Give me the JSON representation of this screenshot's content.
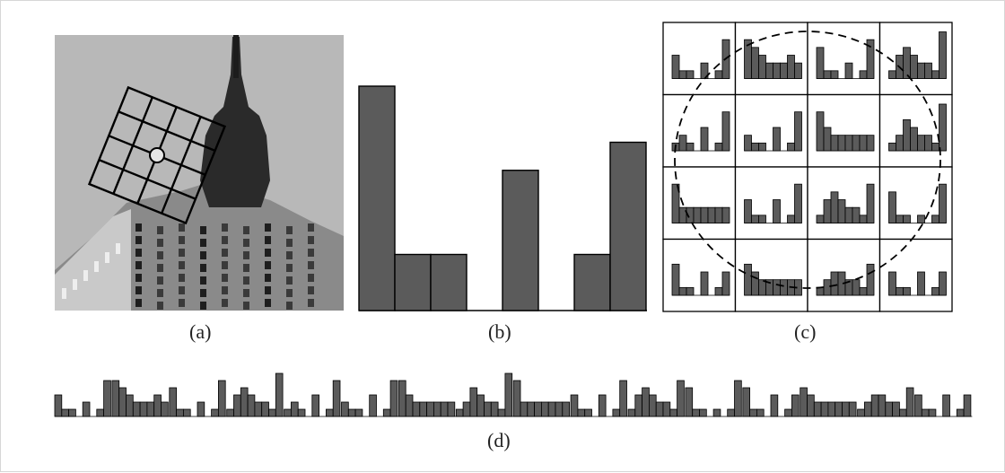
{
  "captions": {
    "a": "(a)",
    "b": "(b)",
    "c": "(c)",
    "d": "(d)"
  },
  "colors": {
    "bar_fill": "#5b5b5b",
    "bar_stroke": "#000000",
    "photo_sky": "#b8b8b8",
    "photo_building": "#8a8a8a"
  },
  "orientation_histogram": [
    8,
    2,
    2,
    0,
    5,
    0,
    2,
    6
  ],
  "descriptor_cells": [
    [
      3,
      1,
      1,
      0,
      2,
      0,
      1,
      5
    ],
    [
      5,
      4,
      3,
      2,
      2,
      2,
      3,
      2
    ],
    [
      4,
      1,
      1,
      0,
      2,
      0,
      1,
      5
    ],
    [
      1,
      3,
      4,
      3,
      2,
      2,
      1,
      6
    ],
    [
      1,
      2,
      1,
      0,
      3,
      0,
      1,
      5
    ],
    [
      2,
      1,
      1,
      0,
      3,
      0,
      1,
      5
    ],
    [
      5,
      3,
      2,
      2,
      2,
      2,
      2,
      2
    ],
    [
      1,
      2,
      4,
      3,
      2,
      2,
      1,
      6
    ],
    [
      5,
      2,
      2,
      2,
      2,
      2,
      2,
      2
    ],
    [
      3,
      1,
      1,
      0,
      3,
      0,
      1,
      5
    ],
    [
      1,
      3,
      4,
      3,
      2,
      2,
      1,
      5
    ],
    [
      4,
      1,
      1,
      0,
      1,
      0,
      1,
      5
    ],
    [
      4,
      1,
      1,
      0,
      3,
      0,
      1,
      3
    ],
    [
      4,
      3,
      2,
      2,
      2,
      2,
      2,
      2
    ],
    [
      1,
      2,
      3,
      3,
      2,
      2,
      1,
      4
    ],
    [
      3,
      1,
      1,
      0,
      3,
      0,
      1,
      3
    ]
  ]
}
